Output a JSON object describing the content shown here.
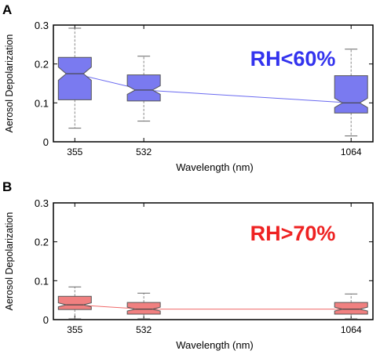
{
  "chart_data": [
    {
      "panel_label": "A",
      "type": "box",
      "annotation": "RH<60%",
      "annotation_color": "#3333ee",
      "box_color": "#7a7af0",
      "line_color": "#6a6af0",
      "xlabel": "Wavelength (nm)",
      "ylabel": "Aerosol Depolarization",
      "ylim": [
        0,
        0.3
      ],
      "yticks": [
        "0",
        "0.1",
        "0.2",
        "0.3"
      ],
      "xlim": [
        300,
        1120
      ],
      "boxes": [
        {
          "x": 355,
          "label": "355",
          "whisker_low": 0.035,
          "q1": 0.108,
          "median": 0.175,
          "q3": 0.217,
          "whisker_high": 0.292,
          "notch_low": 0.158,
          "notch_high": 0.192
        },
        {
          "x": 532,
          "label": "532",
          "whisker_low": 0.053,
          "q1": 0.105,
          "median": 0.133,
          "q3": 0.172,
          "whisker_high": 0.22,
          "notch_low": 0.122,
          "notch_high": 0.144
        },
        {
          "x": 1064,
          "label": "1064",
          "whisker_low": 0.015,
          "q1": 0.074,
          "median": 0.1,
          "q3": 0.17,
          "whisker_high": 0.238,
          "notch_low": 0.088,
          "notch_high": 0.112
        }
      ]
    },
    {
      "panel_label": "B",
      "type": "box",
      "annotation": "RH>70%",
      "annotation_color": "#ee2222",
      "box_color": "#f08080",
      "line_color": "#f06a6a",
      "xlabel": "Wavelength (nm)",
      "ylabel": "Aerosol Depolarization",
      "ylim": [
        0,
        0.3
      ],
      "yticks": [
        "0",
        "0.1",
        "0.2",
        "0.3"
      ],
      "xlim": [
        300,
        1120
      ],
      "boxes": [
        {
          "x": 355,
          "label": "355",
          "whisker_low": 0.002,
          "q1": 0.026,
          "median": 0.038,
          "q3": 0.06,
          "whisker_high": 0.084,
          "notch_low": 0.033,
          "notch_high": 0.043
        },
        {
          "x": 532,
          "label": "532",
          "whisker_low": 0.002,
          "q1": 0.014,
          "median": 0.027,
          "q3": 0.044,
          "whisker_high": 0.068,
          "notch_low": 0.022,
          "notch_high": 0.032
        },
        {
          "x": 1064,
          "label": "1064",
          "whisker_low": 0.002,
          "q1": 0.014,
          "median": 0.027,
          "q3": 0.044,
          "whisker_high": 0.066,
          "notch_low": 0.022,
          "notch_high": 0.032
        }
      ]
    }
  ]
}
